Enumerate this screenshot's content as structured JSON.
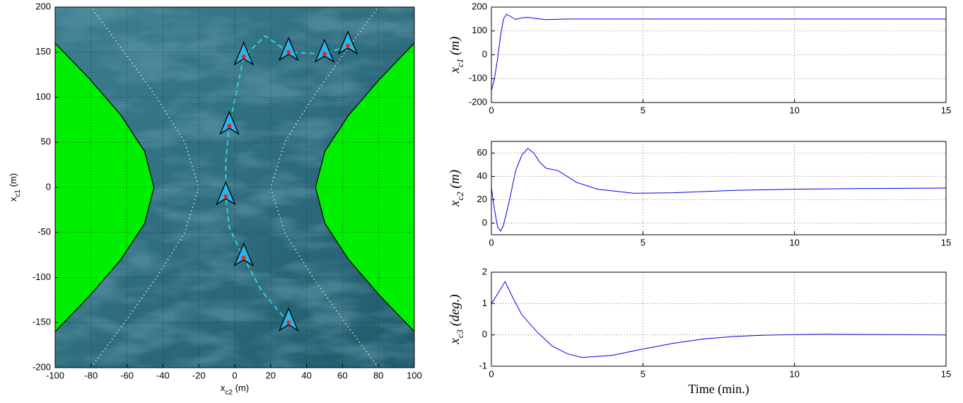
{
  "chart_data": [
    {
      "type": "trajectory",
      "xlabel": [
        "x",
        "c2",
        " (m)"
      ],
      "ylabel": [
        "x",
        "c1",
        " (m)"
      ],
      "xlim": [
        -100,
        100
      ],
      "ylim": [
        -200,
        200
      ],
      "xticks": [
        -100,
        -80,
        -60,
        -40,
        -20,
        0,
        20,
        40,
        60,
        80,
        100
      ],
      "yticks": [
        -200,
        -150,
        -100,
        -50,
        0,
        50,
        100,
        150,
        200
      ],
      "grid": true,
      "regions": [
        {
          "color": "#00ee00",
          "x": [
            -100,
            -80.7,
            -63.4,
            -50.2,
            -45,
            -50.2,
            -63.4,
            -80.7,
            -100
          ],
          "y": [
            -160,
            -120,
            -80,
            -40,
            0,
            40,
            80,
            120,
            160
          ]
        },
        {
          "color": "#00ee00",
          "x": [
            100,
            80.7,
            63.4,
            50.2,
            45,
            50.2,
            63.4,
            80.7,
            100
          ],
          "y": [
            -160,
            -120,
            -80,
            -40,
            0,
            40,
            80,
            120,
            160
          ]
        }
      ],
      "guides": [
        {
          "color": "#dddddd",
          "x": [
            -80,
            -61.4,
            -43.6,
            -27.8,
            -20,
            -27.8,
            -43.6,
            -61.4,
            -80
          ],
          "y": [
            -200,
            -150,
            -100,
            -50,
            0,
            50,
            100,
            150,
            200
          ]
        },
        {
          "color": "#dddddd",
          "x": [
            80,
            61.4,
            43.6,
            27.8,
            20,
            27.8,
            43.6,
            61.4,
            80
          ],
          "y": [
            -200,
            -150,
            -100,
            -50,
            0,
            50,
            100,
            150,
            200
          ]
        }
      ],
      "path": {
        "color": "#33dddd",
        "x": [
          30,
          15,
          5,
          -3,
          -5,
          -5,
          -3,
          5,
          17,
          30,
          50,
          63
        ],
        "y": [
          -150,
          -115,
          -78,
          -45,
          -10,
          30,
          68,
          145,
          168,
          150,
          148,
          157
        ]
      },
      "ships": {
        "color": "#2ab4ea",
        "marker_color": "#ee2222",
        "x": [
          30,
          5,
          -5,
          -3,
          5,
          30,
          50,
          63
        ],
        "y": [
          -150,
          -78,
          -10,
          68,
          145,
          150,
          148,
          157
        ]
      }
    },
    {
      "type": "line",
      "ylabel": [
        "x",
        "c1",
        " (m)"
      ],
      "xlim": [
        0,
        15
      ],
      "ylim": [
        -200,
        200
      ],
      "xticks": [
        0,
        5,
        10,
        15
      ],
      "yticks": [
        -200,
        -100,
        0,
        100,
        200
      ],
      "grid": true,
      "color": "#0000ee",
      "x": [
        0,
        0.1,
        0.2,
        0.3,
        0.4,
        0.5,
        0.6,
        0.8,
        1,
        1.2,
        1.5,
        1.8,
        2,
        2.5,
        3,
        5,
        10,
        15
      ],
      "values": [
        -150,
        -100,
        -20,
        80,
        150,
        170,
        163,
        148,
        155,
        157,
        152,
        147,
        148,
        150,
        150,
        150,
        150,
        150
      ]
    },
    {
      "type": "line",
      "ylabel": [
        "x",
        "c2",
        " (m)"
      ],
      "xlim": [
        0,
        15
      ],
      "ylim": [
        -10,
        70
      ],
      "xticks": [
        0,
        5,
        10,
        15
      ],
      "yticks": [
        0,
        20,
        40,
        60
      ],
      "grid": true,
      "color": "#0000ee",
      "x": [
        0,
        0.1,
        0.2,
        0.3,
        0.4,
        0.6,
        0.8,
        1,
        1.2,
        1.4,
        1.6,
        1.8,
        2.2,
        2.5,
        2.8,
        3.5,
        4.7,
        6,
        8,
        10,
        12,
        15
      ],
      "values": [
        30,
        12,
        -3,
        -7,
        -2,
        20,
        45,
        58,
        64,
        60,
        52,
        47,
        45,
        40,
        35,
        29,
        25.5,
        26,
        28,
        29,
        29.5,
        30
      ]
    },
    {
      "type": "line",
      "ylabel": [
        "x",
        "c3",
        " (deg.)"
      ],
      "xlabel": "Time (min.)",
      "xlim": [
        0,
        15
      ],
      "ylim": [
        -1,
        2
      ],
      "xticks": [
        0,
        5,
        10,
        15
      ],
      "yticks": [
        -1,
        0,
        1,
        2
      ],
      "grid": true,
      "color": "#0000ee",
      "x": [
        0,
        0.2,
        0.45,
        0.7,
        1,
        1.5,
        2,
        2.5,
        3,
        4,
        5,
        6,
        7,
        8,
        9,
        10,
        11,
        13,
        15
      ],
      "values": [
        1,
        1.3,
        1.7,
        1.2,
        0.65,
        0.1,
        -0.35,
        -0.6,
        -0.72,
        -0.65,
        -0.45,
        -0.27,
        -0.13,
        -0.05,
        -0.01,
        0.01,
        0.02,
        0.01,
        0
      ]
    }
  ]
}
